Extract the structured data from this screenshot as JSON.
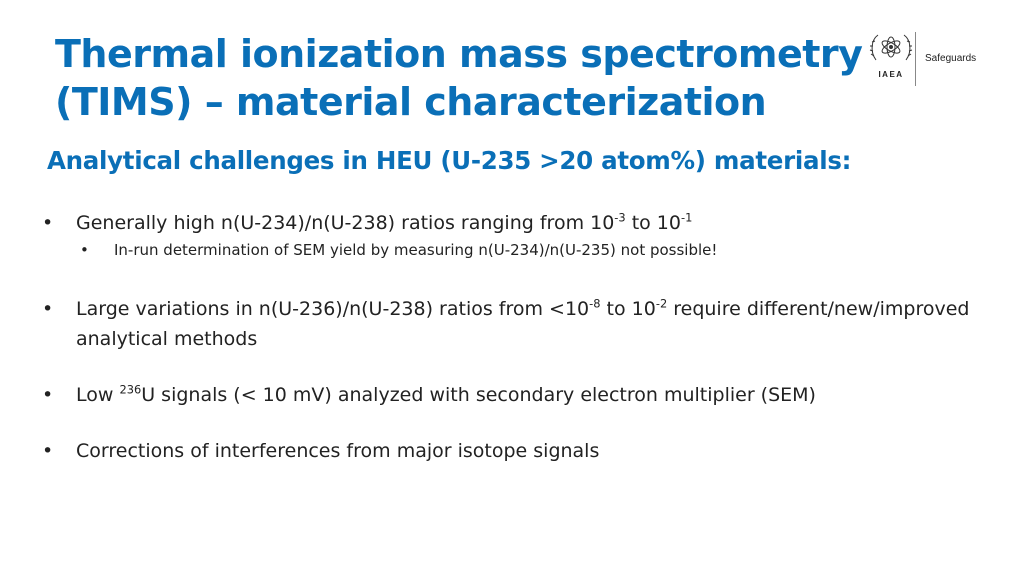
{
  "header": {
    "title_line1": "Thermal ionization mass spectrometry",
    "title_line2": "(TIMS) – material characterization",
    "logo_text": "IAEA",
    "tagline": "Safeguards"
  },
  "subtitle": "Analytical challenges in HEU (U-235 >20 atom%) materials:",
  "bullets": [
    {
      "pre": "Generally high n(U-234)/n(U-238) ratios ranging from 10",
      "sup1": "-3",
      "mid": " to 10",
      "sup2": "-1",
      "sub": "In-run determination of SEM yield by measuring n(U-234)/n(U-235) not possible!"
    },
    {
      "pre": "Large variations in n(U-236)/n(U-238) ratios from <10",
      "sup1": "-8",
      "mid": " to 10",
      "sup2": "-2",
      "post": " require different/new/improved analytical methods"
    },
    {
      "pre": "Low ",
      "sup1": "236",
      "post": "U signals (< 10 mV) analyzed with secondary electron multiplier (SEM)"
    },
    {
      "text": "Corrections of interferences from major isotope signals"
    }
  ],
  "icons": {
    "logo": "iaea-emblem-icon",
    "bullet": "bullet-dot-icon"
  },
  "colors": {
    "accent": "#0a6fb7",
    "text": "#222222"
  }
}
